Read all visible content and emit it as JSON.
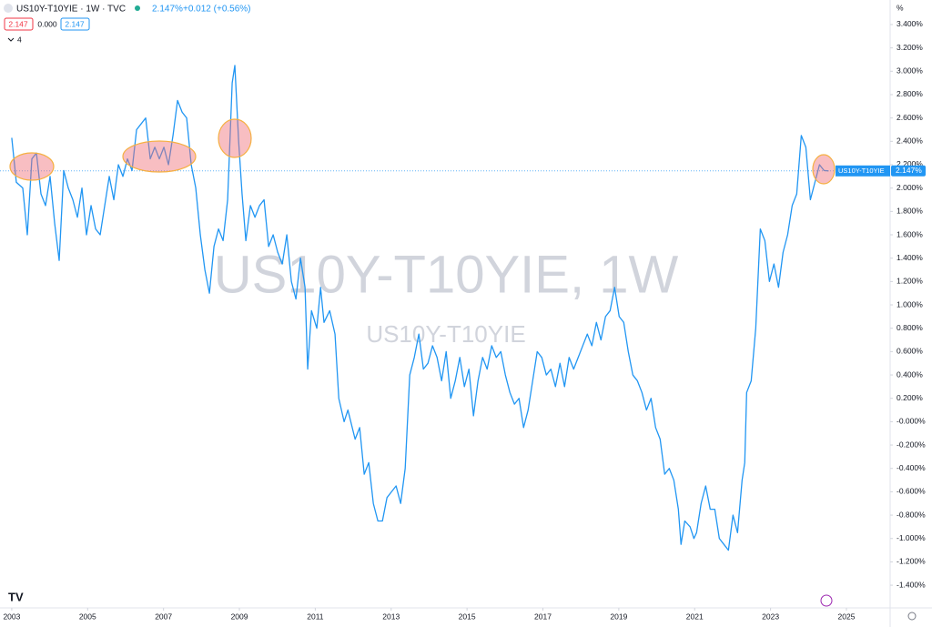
{
  "chart_data": {
    "type": "line",
    "title": "US10Y-T10YIE · 1W · TVC",
    "header": {
      "price": "2.147%",
      "change": "+0.012 (+0.56%)",
      "open_box": "2.147",
      "mid": "0.000",
      "close_box": "2.147",
      "counter": "4"
    },
    "watermark": "US10Y-T10YIE, 1W",
    "watermark_sub": "US10Y-T10YIE",
    "y_unit": "%",
    "price_tag": "2.147%",
    "xlim": [
      2002.69,
      2026.08
    ],
    "ylim": [
      -1.594,
      3.61
    ],
    "xticks": [
      2003,
      2005,
      2007,
      2009,
      2011,
      2013,
      2015,
      2017,
      2019,
      2021,
      2023,
      2025
    ],
    "yticks": [
      {
        "value": 3.4,
        "label": "3.400%"
      },
      {
        "value": 3.2,
        "label": "3.200%"
      },
      {
        "value": 3.0,
        "label": "3.000%"
      },
      {
        "value": 2.8,
        "label": "2.800%"
      },
      {
        "value": 2.6,
        "label": "2.600%"
      },
      {
        "value": 2.4,
        "label": "2.400%"
      },
      {
        "value": 2.2,
        "label": "2.200%"
      },
      {
        "value": 2.0,
        "label": "2.000%"
      },
      {
        "value": 1.8,
        "label": "1.800%"
      },
      {
        "value": 1.6,
        "label": "1.600%"
      },
      {
        "value": 1.4,
        "label": "1.400%"
      },
      {
        "value": 1.2,
        "label": "1.200%"
      },
      {
        "value": 1.0,
        "label": "1.000%"
      },
      {
        "value": 0.8,
        "label": "0.800%"
      },
      {
        "value": 0.6,
        "label": "0.600%"
      },
      {
        "value": 0.4,
        "label": "0.400%"
      },
      {
        "value": 0.2,
        "label": "0.200%"
      },
      {
        "value": 0,
        "label": "-0.000%"
      },
      {
        "value": -0.2,
        "label": "-0.200%"
      },
      {
        "value": -0.4,
        "label": "-0.400%"
      },
      {
        "value": -0.6,
        "label": "-0.600%"
      },
      {
        "value": -0.8,
        "label": "-0.800%"
      },
      {
        "value": -1.0,
        "label": "-1.000%"
      },
      {
        "value": -1.2,
        "label": "-1.200%"
      },
      {
        "value": -1.4,
        "label": "-1.400%"
      }
    ],
    "x": [
      2003.0,
      2003.12,
      2003.29,
      2003.41,
      2003.53,
      2003.65,
      2003.77,
      2003.89,
      2004.01,
      2004.13,
      2004.25,
      2004.37,
      2004.49,
      2004.61,
      2004.73,
      2004.85,
      2004.97,
      2005.09,
      2005.21,
      2005.33,
      2005.45,
      2005.57,
      2005.69,
      2005.81,
      2005.93,
      2006.05,
      2006.17,
      2006.29,
      2006.41,
      2006.53,
      2006.65,
      2006.77,
      2006.89,
      2007.01,
      2007.13,
      2007.25,
      2007.37,
      2007.49,
      2007.61,
      2007.73,
      2007.85,
      2007.97,
      2008.09,
      2008.21,
      2008.33,
      2008.45,
      2008.57,
      2008.69,
      2008.81,
      2008.88,
      2008.98,
      2009.07,
      2009.17,
      2009.29,
      2009.41,
      2009.53,
      2009.65,
      2009.77,
      2009.89,
      2010.01,
      2010.13,
      2010.25,
      2010.37,
      2010.49,
      2010.61,
      2010.73,
      2010.8,
      2010.9,
      2011.04,
      2011.14,
      2011.23,
      2011.38,
      2011.52,
      2011.62,
      2011.76,
      2011.86,
      2012.05,
      2012.17,
      2012.29,
      2012.41,
      2012.53,
      2012.65,
      2012.77,
      2012.89,
      2013.01,
      2013.13,
      2013.25,
      2013.37,
      2013.49,
      2013.61,
      2013.73,
      2013.85,
      2013.97,
      2014.09,
      2014.21,
      2014.33,
      2014.45,
      2014.57,
      2014.69,
      2014.81,
      2014.93,
      2015.05,
      2015.17,
      2015.29,
      2015.41,
      2015.53,
      2015.65,
      2015.77,
      2015.89,
      2016.01,
      2016.13,
      2016.25,
      2016.37,
      2016.49,
      2016.61,
      2016.73,
      2016.85,
      2016.97,
      2017.09,
      2017.21,
      2017.33,
      2017.45,
      2017.57,
      2017.69,
      2017.81,
      2017.93,
      2018.05,
      2018.17,
      2018.29,
      2018.41,
      2018.53,
      2018.65,
      2018.77,
      2018.89,
      2019.01,
      2019.13,
      2019.25,
      2019.37,
      2019.49,
      2019.61,
      2019.73,
      2019.85,
      2019.97,
      2020.09,
      2020.21,
      2020.33,
      2020.45,
      2020.57,
      2020.64,
      2020.74,
      2020.88,
      2020.98,
      2021.05,
      2021.17,
      2021.29,
      2021.41,
      2021.53,
      2021.65,
      2021.77,
      2021.89,
      2022.01,
      2022.13,
      2022.25,
      2022.32,
      2022.37,
      2022.49,
      2022.61,
      2022.73,
      2022.85,
      2022.97,
      2023.09,
      2023.21,
      2023.33,
      2023.45,
      2023.57,
      2023.69,
      2023.81,
      2023.93,
      2024.05,
      2024.17,
      2024.29,
      2024.41,
      2024.53
    ],
    "series": [
      {
        "name": "US10Y-T10YIE",
        "color": "#2196f3",
        "values": [
          2.43,
          2.05,
          2.0,
          1.6,
          2.25,
          2.3,
          1.95,
          1.85,
          2.1,
          1.7,
          1.38,
          2.15,
          2.0,
          1.9,
          1.75,
          2.0,
          1.6,
          1.85,
          1.65,
          1.6,
          1.85,
          2.1,
          1.9,
          2.2,
          2.1,
          2.25,
          2.15,
          2.5,
          2.55,
          2.6,
          2.25,
          2.35,
          2.25,
          2.35,
          2.2,
          2.45,
          2.75,
          2.65,
          2.6,
          2.2,
          2.0,
          1.6,
          1.3,
          1.1,
          1.5,
          1.65,
          1.55,
          1.9,
          2.9,
          3.05,
          2.4,
          1.95,
          1.55,
          1.85,
          1.75,
          1.85,
          1.9,
          1.5,
          1.6,
          1.45,
          1.35,
          1.6,
          1.2,
          1.05,
          1.4,
          1.15,
          0.45,
          0.95,
          0.8,
          1.15,
          0.85,
          0.95,
          0.75,
          0.2,
          0.0,
          0.1,
          -0.15,
          -0.05,
          -0.45,
          -0.35,
          -0.7,
          -0.85,
          -0.85,
          -0.65,
          -0.6,
          -0.55,
          -0.7,
          -0.4,
          0.4,
          0.55,
          0.75,
          0.45,
          0.5,
          0.65,
          0.55,
          0.35,
          0.6,
          0.2,
          0.35,
          0.55,
          0.3,
          0.45,
          0.05,
          0.35,
          0.55,
          0.45,
          0.65,
          0.55,
          0.6,
          0.4,
          0.25,
          0.15,
          0.2,
          -0.05,
          0.1,
          0.35,
          0.6,
          0.55,
          0.4,
          0.45,
          0.3,
          0.5,
          0.3,
          0.55,
          0.45,
          0.55,
          0.65,
          0.75,
          0.65,
          0.85,
          0.7,
          0.9,
          0.95,
          1.15,
          0.9,
          0.85,
          0.6,
          0.4,
          0.35,
          0.25,
          0.1,
          0.2,
          -0.05,
          -0.15,
          -0.45,
          -0.4,
          -0.5,
          -0.75,
          -1.05,
          -0.85,
          -0.9,
          -1.0,
          -0.95,
          -0.7,
          -0.55,
          -0.75,
          -0.75,
          -1.0,
          -1.05,
          -1.1,
          -0.8,
          -0.95,
          -0.5,
          -0.35,
          0.25,
          0.35,
          0.8,
          1.65,
          1.55,
          1.2,
          1.35,
          1.15,
          1.45,
          1.6,
          1.85,
          1.95,
          2.45,
          2.35,
          1.9,
          2.05,
          2.2,
          2.15,
          2.147
        ]
      }
    ]
  }
}
